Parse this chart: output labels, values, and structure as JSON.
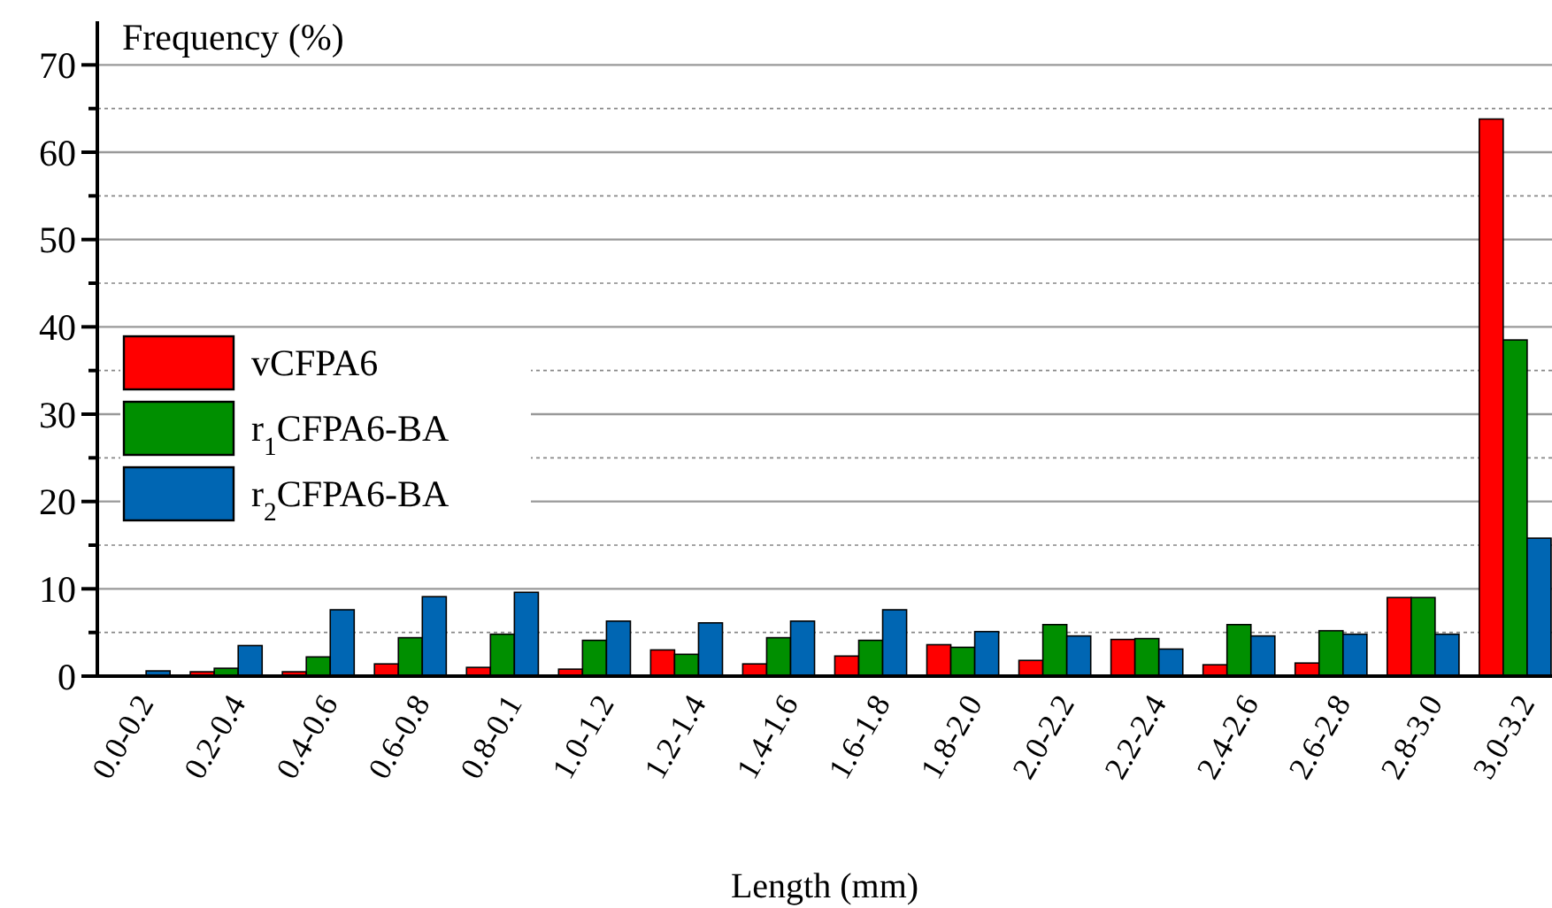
{
  "chart_data": {
    "type": "bar",
    "xlabel": "Length (mm)",
    "ylabel": "Frequency (%)",
    "categories": [
      "0.0-0.2",
      "0.2-0.4",
      "0.4-0.6",
      "0.6-0.8",
      "0.8-0.1",
      "1.0-1.2",
      "1.2-1.4",
      "1.4-1.6",
      "1.6-1.8",
      "1.8-2.0",
      "2.0-2.2",
      "2.2-2.4",
      "2.4-2.6",
      "2.6-2.8",
      "2.8-3.0",
      "3.0-3.2"
    ],
    "series": [
      {
        "name": "vCFPA6",
        "color": "#ff0000",
        "values": [
          0,
          0.5,
          0.5,
          1.4,
          1.0,
          0.8,
          3.0,
          1.4,
          2.3,
          3.6,
          1.8,
          4.2,
          1.3,
          1.5,
          9.0,
          63.8
        ]
      },
      {
        "name": "r$_{1}$CFPA6-BA",
        "color": "#008f00",
        "values": [
          0,
          0.9,
          2.2,
          4.4,
          4.8,
          4.1,
          2.5,
          4.4,
          4.1,
          3.3,
          5.9,
          4.3,
          5.9,
          5.2,
          9.0,
          38.5
        ]
      },
      {
        "name": "r$_{2}$CFPA6-BA",
        "color": "#0066b3",
        "values": [
          0.6,
          3.5,
          7.6,
          9.1,
          9.6,
          6.3,
          6.1,
          6.3,
          7.6,
          5.1,
          4.6,
          3.1,
          4.6,
          4.8,
          4.8,
          15.8
        ]
      }
    ],
    "ylim": [
      0,
      75
    ],
    "yticks": [
      0,
      {
        "value": 5,
        "label": null
      },
      10,
      {
        "value": 15,
        "label": null
      },
      20,
      {
        "value": 25,
        "label": null
      },
      30,
      {
        "value": 35,
        "label": null
      },
      40,
      {
        "value": 45,
        "label": null
      },
      50,
      {
        "value": 55,
        "label": null
      },
      60,
      {
        "value": 65,
        "label": null
      },
      70
    ],
    "grid": "y",
    "legend": "left"
  }
}
